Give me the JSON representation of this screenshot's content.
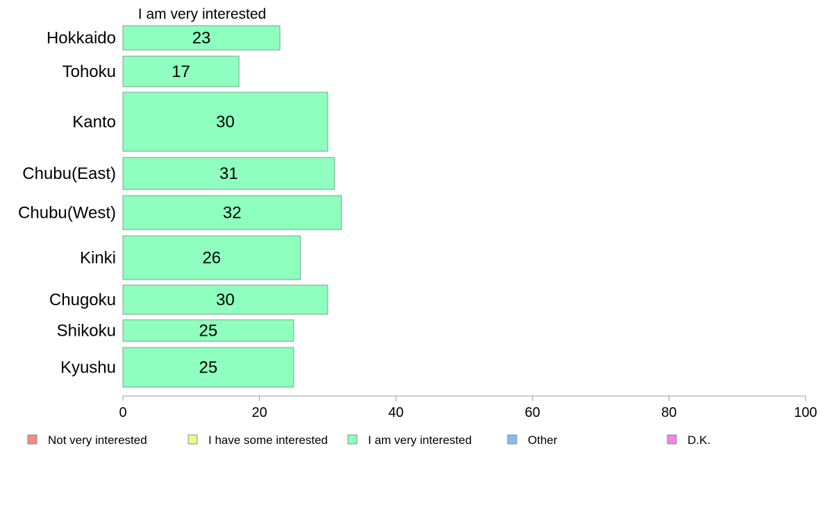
{
  "chart_data": {
    "type": "bar",
    "orientation": "horizontal",
    "title": "I am very interested",
    "categories": [
      "Hokkaido",
      "Tohoku",
      "Kanto",
      "Chubu(East)",
      "Chubu(West)",
      "Kinki",
      "Chugoku",
      "Shikoku",
      "Kyushu"
    ],
    "values": [
      23,
      17,
      30,
      31,
      32,
      26,
      30,
      25,
      25
    ],
    "bar_value_labels": [
      "23",
      "17",
      "30",
      "31",
      "32",
      "26",
      "30",
      "25",
      "25"
    ],
    "xlim": [
      0,
      100
    ],
    "x_ticks": [
      0,
      20,
      40,
      60,
      80,
      100
    ],
    "x_tick_labels": [
      "0",
      "20",
      "40",
      "60",
      "80",
      "100"
    ],
    "grid": false,
    "legend_position": "bottom",
    "legend": [
      {
        "label": "Not very interested",
        "color": "#f4888a"
      },
      {
        "label": "I have some interested",
        "color": "#ecf98c"
      },
      {
        "label": "I am very interested",
        "color": "#8effbe"
      },
      {
        "label": "Other",
        "color": "#8ab8f4"
      },
      {
        "label": "D.K.",
        "color": "#ef84ef"
      }
    ],
    "bar_color": "#8effbe",
    "bar_stroke": "#7aa08a",
    "axis_color": "#9a9a9a"
  }
}
